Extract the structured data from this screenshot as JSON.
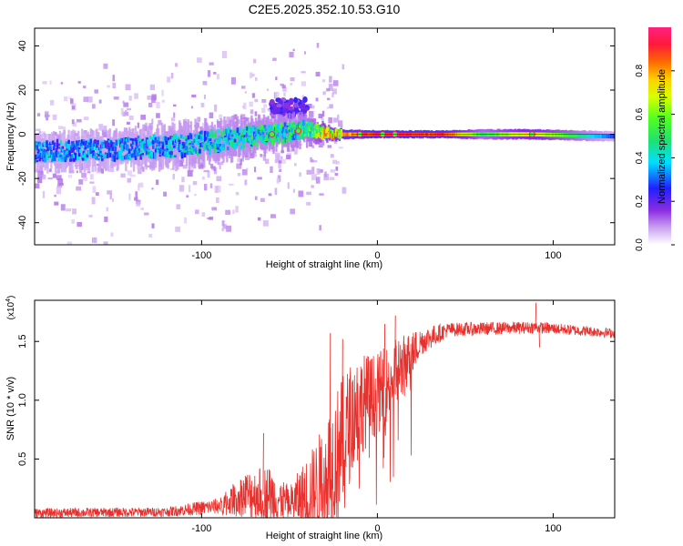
{
  "title": "C2E5.2025.352.10.53.G10",
  "colors": {
    "trace": "#e8302c",
    "axis": "#000000",
    "background": "#ffffff"
  },
  "chart_data": [
    {
      "type": "heatmap",
      "name": "spectrogram",
      "xlabel": "Height of straight line (km)",
      "ylabel": "Frequency (Hz)",
      "xlim": [
        -195,
        135
      ],
      "ylim": [
        -50,
        48
      ],
      "xticks": [
        -100,
        0,
        100
      ],
      "yticks": [
        -40,
        -20,
        0,
        20,
        40
      ],
      "xtick_labels": [
        "-100",
        "0",
        "100"
      ],
      "ytick_labels": [
        "-40",
        "-20",
        "0",
        "20",
        "40"
      ],
      "colorbar": {
        "label": "Normalized spectral amplitude",
        "range": [
          0,
          1
        ],
        "ticks": [
          0.0,
          0.2,
          0.4,
          0.6,
          0.8
        ],
        "tick_labels": [
          "0.0",
          "0.2",
          "0.4",
          "0.6",
          "0.8"
        ]
      },
      "ridge": [
        {
          "x": -195,
          "freq": -8,
          "spread": 6,
          "amp": 0.35
        },
        {
          "x": -150,
          "freq": -7,
          "spread": 6,
          "amp": 0.35
        },
        {
          "x": -110,
          "freq": -5,
          "spread": 7,
          "amp": 0.4
        },
        {
          "x": -70,
          "freq": -1,
          "spread": 6,
          "amp": 0.45
        },
        {
          "x": -40,
          "freq": 2,
          "spread": 5,
          "amp": 0.5
        },
        {
          "x": -25,
          "freq": 0,
          "spread": 2,
          "amp": 0.8
        },
        {
          "x": 0,
          "freq": 0,
          "spread": 1.5,
          "amp": 1.0
        },
        {
          "x": 40,
          "freq": 0,
          "spread": 1.5,
          "amp": 0.95
        },
        {
          "x": 60,
          "freq": 0,
          "spread": 2,
          "amp": 0.55
        },
        {
          "x": 88,
          "freq": 0,
          "spread": 2,
          "amp": 0.8
        },
        {
          "x": 135,
          "freq": -1,
          "spread": 2,
          "amp": 0.3
        }
      ],
      "side_band": {
        "x": [
          -60,
          -40
        ],
        "freq": [
          8,
          16
        ],
        "amp": 0.25
      }
    },
    {
      "type": "line",
      "name": "snr",
      "xlabel": "Height of straight line (km)",
      "ylabel": "SNR (10 * v/v)",
      "scale_label": "(x10^4)",
      "scale_base": "(x10",
      "scale_exp": "4",
      "scale_close": ")",
      "xlim": [
        -195,
        135
      ],
      "ylim": [
        0,
        1.85
      ],
      "xticks": [
        -100,
        0,
        100
      ],
      "yticks": [
        0.5,
        1.0,
        1.5
      ],
      "xtick_labels": [
        "-100",
        "0",
        "100"
      ],
      "ytick_labels": [
        "0.5",
        "1.0",
        "1.5"
      ],
      "envelope": [
        {
          "x": -195,
          "base": 0.04,
          "noise": 0.04
        },
        {
          "x": -120,
          "base": 0.05,
          "noise": 0.04
        },
        {
          "x": -90,
          "base": 0.1,
          "noise": 0.07
        },
        {
          "x": -75,
          "base": 0.2,
          "noise": 0.2
        },
        {
          "x": -62,
          "base": 0.2,
          "noise": 0.25
        },
        {
          "x": -50,
          "base": 0.12,
          "noise": 0.15
        },
        {
          "x": -35,
          "base": 0.25,
          "noise": 0.4
        },
        {
          "x": -22,
          "base": 0.55,
          "noise": 0.6
        },
        {
          "x": -12,
          "base": 0.95,
          "noise": 0.45
        },
        {
          "x": 0,
          "base": 1.05,
          "noise": 0.35
        },
        {
          "x": 12,
          "base": 1.25,
          "noise": 0.3
        },
        {
          "x": 25,
          "base": 1.5,
          "noise": 0.12
        },
        {
          "x": 40,
          "base": 1.6,
          "noise": 0.06
        },
        {
          "x": 90,
          "base": 1.62,
          "noise": 0.05
        },
        {
          "x": 135,
          "base": 1.57,
          "noise": 0.04
        }
      ],
      "spikes": [
        {
          "x": 10,
          "y": 1.72
        },
        {
          "x": -27,
          "y": 1.57
        },
        {
          "x": 90,
          "y": 1.83
        },
        {
          "x": 92,
          "y": 1.45
        },
        {
          "x": -65,
          "y": 0.72
        },
        {
          "x": -20,
          "y": 1.52
        },
        {
          "x": 4,
          "y": 1.65
        }
      ]
    }
  ]
}
